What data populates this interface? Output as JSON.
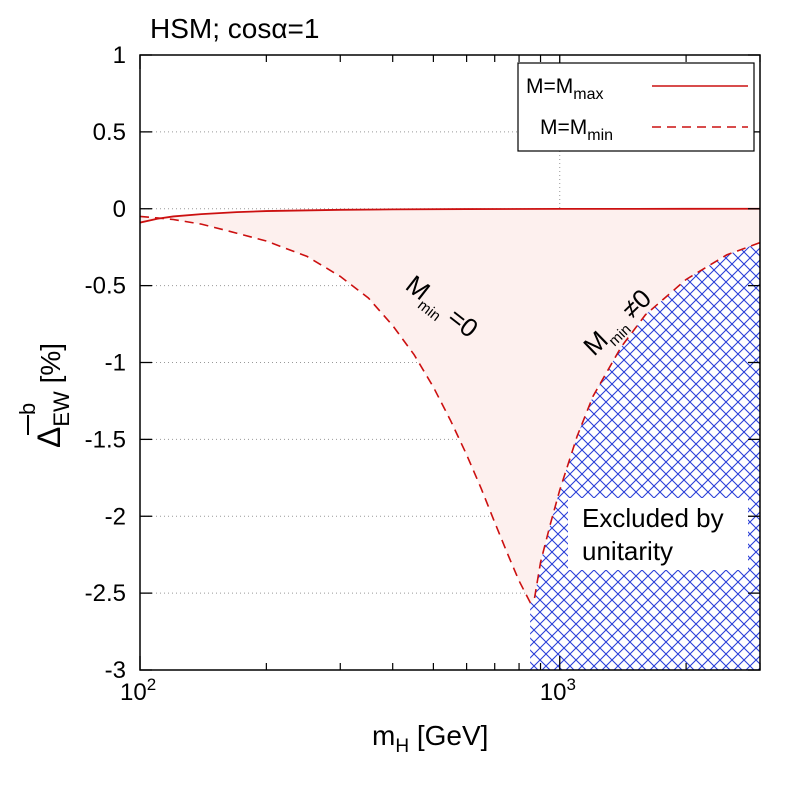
{
  "chart_data": {
    "type": "line",
    "title": "HSM; cosα=1",
    "xlabel": {
      "base": "m",
      "sub": "H",
      "rest": " [GeV]"
    },
    "ylabel": {
      "base": "Δ",
      "sup": "b",
      "sub": "EW",
      "rest": " [%]"
    },
    "xscale": "log",
    "xlim": [
      100,
      3000
    ],
    "ylim": [
      -3,
      1
    ],
    "yticks": [
      1,
      0.5,
      0,
      -0.5,
      -1,
      -1.5,
      -2,
      -2.5,
      -3
    ],
    "ytick_labels": [
      "1",
      "0.5",
      "0",
      "-0.5",
      "-1",
      "-1.5",
      "-2",
      "-2.5",
      "-3"
    ],
    "xtick_major": [
      {
        "value": 100,
        "base": "10",
        "exp": "2"
      },
      {
        "value": 1000,
        "base": "10",
        "exp": "3"
      }
    ],
    "xtick_minor": [
      200,
      300,
      400,
      500,
      600,
      700,
      800,
      900,
      2000,
      3000
    ],
    "grid": true,
    "series": [
      {
        "name": "M=M_max",
        "label_base": "M=M",
        "label_sub": "max",
        "style": "solid",
        "color": "#cc1010",
        "x": [
          100,
          110,
          120,
          140,
          170,
          200,
          300,
          400,
          600,
          1000,
          2000,
          3000
        ],
        "y": [
          -0.09,
          -0.065,
          -0.05,
          -0.035,
          -0.022,
          -0.015,
          -0.007,
          -0.004,
          -0.002,
          -0.001,
          -0.0005,
          0
        ]
      },
      {
        "name": "M=M_min",
        "label_base": "M=M",
        "label_sub": "min",
        "style": "dashed",
        "color": "#cc1010",
        "x": [
          100,
          110,
          120,
          140,
          160,
          200,
          250,
          300,
          350,
          400,
          450,
          500,
          550,
          600,
          650,
          700,
          750,
          800,
          850,
          870,
          900,
          950,
          1000,
          1100,
          1200,
          1400,
          1600,
          2000,
          2500,
          3000
        ],
        "y": [
          -0.05,
          -0.06,
          -0.07,
          -0.1,
          -0.14,
          -0.21,
          -0.31,
          -0.44,
          -0.58,
          -0.76,
          -0.95,
          -1.16,
          -1.38,
          -1.6,
          -1.82,
          -2.04,
          -2.24,
          -2.42,
          -2.56,
          -2.54,
          -2.3,
          -2.05,
          -1.83,
          -1.48,
          -1.22,
          -0.9,
          -0.69,
          -0.46,
          -0.3,
          -0.22
        ]
      }
    ],
    "fill_between_color": "#fdf0ee",
    "excluded_region": {
      "label_line1": "Excluded by",
      "label_line2": "unitarity",
      "color": "#2a3fd8"
    },
    "annotations": [
      {
        "id": "mmin-zero",
        "base": "M",
        "sub": "min",
        "rest": " =0"
      },
      {
        "id": "mmin-nonzero",
        "base": "M",
        "sub": "min",
        "rest": " ≠0"
      }
    ],
    "legend_position": "top-right"
  }
}
